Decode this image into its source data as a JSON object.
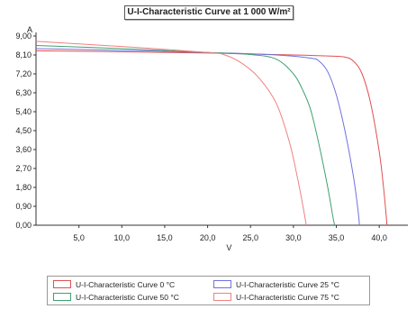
{
  "chart_data": {
    "type": "line",
    "title": "U-I-Characteristic Curve at 1 000 W/m²",
    "xlabel": "V",
    "ylabel": "A",
    "xlim": [
      0,
      42.5
    ],
    "ylim": [
      0,
      9.0
    ],
    "x_ticks": [
      "5,0",
      "10,0",
      "15,0",
      "20,0",
      "25,0",
      "30,0",
      "35,0",
      "40,0"
    ],
    "y_ticks": [
      "0,00",
      "0,90",
      "1,80",
      "2,70",
      "3,60",
      "4,50",
      "5,40",
      "6,30",
      "7,20",
      "8,10",
      "9,00"
    ],
    "grid": false,
    "legend_position": "bottom",
    "series": [
      {
        "name": "U-I-Characteristic Curve 0 °C",
        "color": "#e05050",
        "points": [
          [
            0,
            8.3
          ],
          [
            10,
            8.25
          ],
          [
            20,
            8.19
          ],
          [
            30,
            8.1
          ],
          [
            34,
            8.05
          ],
          [
            36,
            8.0
          ],
          [
            37,
            7.8
          ],
          [
            38,
            7.2
          ],
          [
            39,
            5.8
          ],
          [
            40,
            3.5
          ],
          [
            40.5,
            1.8
          ],
          [
            40.8,
            0.5
          ],
          [
            40.9,
            0
          ]
        ]
      },
      {
        "name": "U-I-Characteristic Curve 25 °C",
        "color": "#7070e0",
        "points": [
          [
            0,
            8.4
          ],
          [
            10,
            8.32
          ],
          [
            20,
            8.22
          ],
          [
            28,
            8.1
          ],
          [
            32,
            7.95
          ],
          [
            33,
            7.8
          ],
          [
            34,
            7.3
          ],
          [
            35,
            6.2
          ],
          [
            36,
            4.5
          ],
          [
            37,
            2.3
          ],
          [
            37.5,
            0.8
          ],
          [
            37.7,
            0
          ]
        ]
      },
      {
        "name": "U-I-Characteristic Curve 50 °C",
        "color": "#40a070",
        "points": [
          [
            0,
            8.55
          ],
          [
            10,
            8.4
          ],
          [
            20,
            8.22
          ],
          [
            25,
            8.12
          ],
          [
            28,
            7.9
          ],
          [
            30,
            7.2
          ],
          [
            31,
            6.5
          ],
          [
            32,
            5.5
          ],
          [
            33,
            3.8
          ],
          [
            34,
            1.8
          ],
          [
            34.6,
            0.4
          ],
          [
            34.8,
            0
          ]
        ]
      },
      {
        "name": "U-I-Characteristic Curve 75 °C",
        "color": "#f08080",
        "points": [
          [
            0,
            8.75
          ],
          [
            10,
            8.5
          ],
          [
            20,
            8.22
          ],
          [
            22,
            8.1
          ],
          [
            24,
            7.7
          ],
          [
            26,
            7.0
          ],
          [
            28,
            5.8
          ],
          [
            29.5,
            4.0
          ],
          [
            30.5,
            2.2
          ],
          [
            31.2,
            0.7
          ],
          [
            31.5,
            0
          ]
        ]
      }
    ]
  }
}
